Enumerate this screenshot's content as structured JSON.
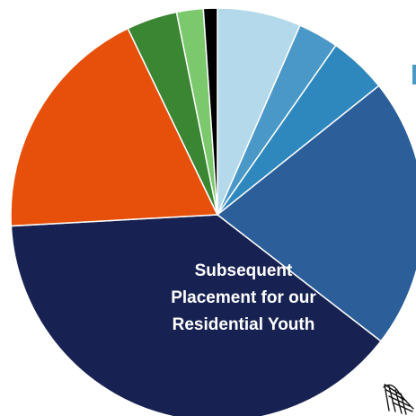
{
  "chart_data": {
    "type": "pie",
    "title_lines": [
      "Subsequent",
      "Placement for our",
      "Residential Youth"
    ],
    "start_angle_deg": 0,
    "direction": "clockwise",
    "slices": [
      {
        "value": 6.6,
        "color": "#b3d9ea"
      },
      {
        "value": 3.2,
        "color": "#4a98c8"
      },
      {
        "value": 4.6,
        "color": "#2f88bd"
      },
      {
        "value": 21.4,
        "color": "#2c5e99"
      },
      {
        "value": 39.0,
        "color": "#172252"
      },
      {
        "value": 18.9,
        "color": "#e6500a"
      },
      {
        "value": 4.0,
        "color": "#3b8632"
      },
      {
        "value": 2.1,
        "color": "#7bc86d"
      },
      {
        "value": 1.1,
        "color": "#000000"
      }
    ]
  },
  "decorations": {
    "scribble_icon": "hand-drawn-scribble"
  }
}
